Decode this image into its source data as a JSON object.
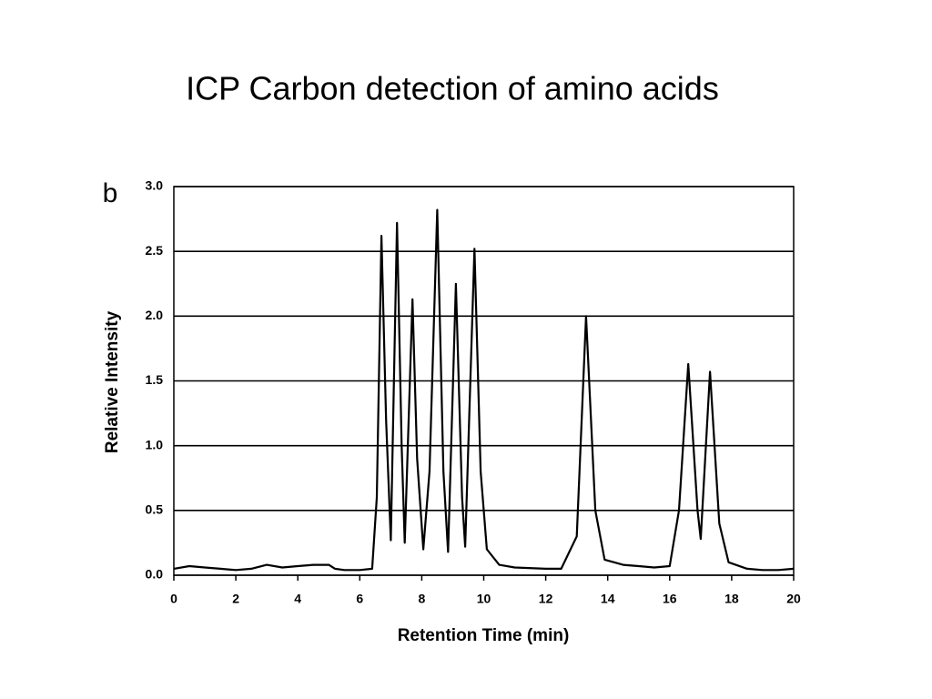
{
  "chart_data": {
    "type": "line",
    "title": "ICP Carbon detection of amino acids",
    "panel_label": "b",
    "x_label": "Retention Time (min)",
    "y_label": "Relative Intensity",
    "color": "#000000",
    "grid": true,
    "xlim": [
      0,
      20
    ],
    "xticks": [
      0,
      2,
      4,
      6,
      8,
      10,
      12,
      14,
      16,
      18,
      20
    ],
    "ylim": [
      0,
      3
    ],
    "yticks": [
      {
        "value": 0,
        "label": "0.0"
      },
      0.5,
      {
        "value": 1,
        "label": "1.0"
      },
      1.5,
      {
        "value": 2,
        "label": "2.0"
      },
      2.5,
      {
        "value": 3,
        "label": "3.0"
      }
    ],
    "x": [
      0,
      0.5,
      1,
      1.5,
      2,
      2.5,
      3,
      3.5,
      4,
      4.5,
      5,
      5.2,
      5.5,
      6,
      6.4,
      6.55,
      6.7,
      6.85,
      7.0,
      7.2,
      7.35,
      7.45,
      7.7,
      7.85,
      8.05,
      8.25,
      8.5,
      8.7,
      8.85,
      9.1,
      9.3,
      9.4,
      9.7,
      9.9,
      10.1,
      10.5,
      11,
      12,
      12.5,
      13.0,
      13.3,
      13.6,
      13.9,
      14.5,
      15,
      15.5,
      16.0,
      16.3,
      16.6,
      16.9,
      17.0,
      17.3,
      17.6,
      17.9,
      18.5,
      19,
      19.5,
      20
    ],
    "values": [
      0.05,
      0.07,
      0.06,
      0.05,
      0.04,
      0.05,
      0.08,
      0.06,
      0.07,
      0.08,
      0.08,
      0.05,
      0.04,
      0.04,
      0.05,
      0.6,
      2.62,
      1.2,
      0.27,
      2.72,
      1.0,
      0.25,
      2.13,
      0.9,
      0.2,
      0.8,
      2.82,
      0.8,
      0.18,
      2.25,
      0.6,
      0.22,
      2.52,
      0.8,
      0.2,
      0.08,
      0.06,
      0.05,
      0.05,
      0.3,
      2.0,
      0.5,
      0.12,
      0.08,
      0.07,
      0.06,
      0.07,
      0.5,
      1.63,
      0.5,
      0.28,
      1.57,
      0.4,
      0.1,
      0.05,
      0.04,
      0.04,
      0.05
    ]
  }
}
